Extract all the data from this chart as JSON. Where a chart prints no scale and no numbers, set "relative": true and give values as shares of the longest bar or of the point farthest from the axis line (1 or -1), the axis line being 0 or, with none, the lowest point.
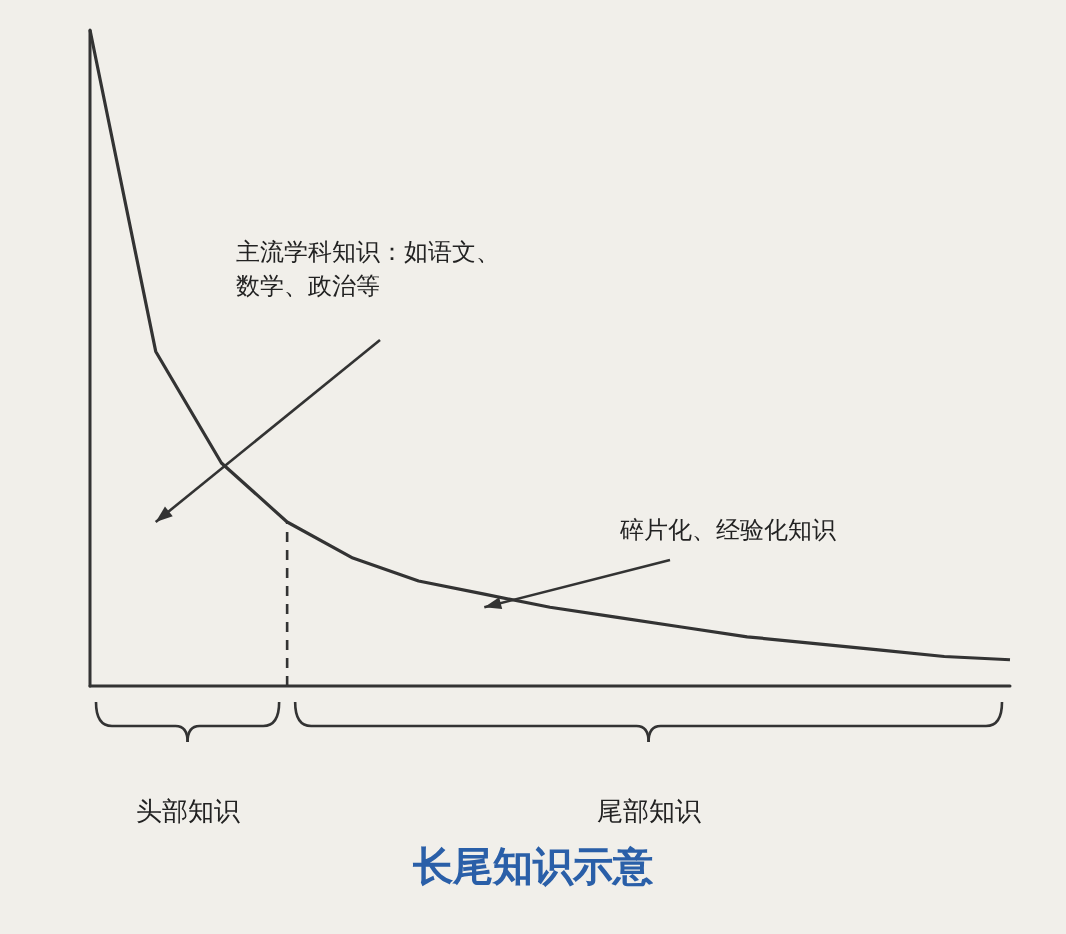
{
  "chart_data": {
    "type": "line",
    "title": "长尾知识示意",
    "relative": true,
    "marker": "none",
    "line_style": "solid",
    "categories": [
      null,
      null,
      null,
      null,
      null,
      null,
      null,
      null,
      null,
      null,
      null,
      null,
      null,
      null,
      null
    ],
    "series": [
      {
        "color": "#333333",
        "values": [
          1.0,
          0.51,
          0.34,
          0.25,
          0.195,
          0.16,
          0.14,
          0.12,
          0.105,
          0.09,
          0.075,
          0.065,
          0.055,
          0.045,
          0.04
        ]
      }
    ],
    "annotations": [
      "主流学科知识：如语文、数学、政治等",
      "碎片化、经验化知识",
      "头部知识",
      "尾部知识"
    ]
  }
}
